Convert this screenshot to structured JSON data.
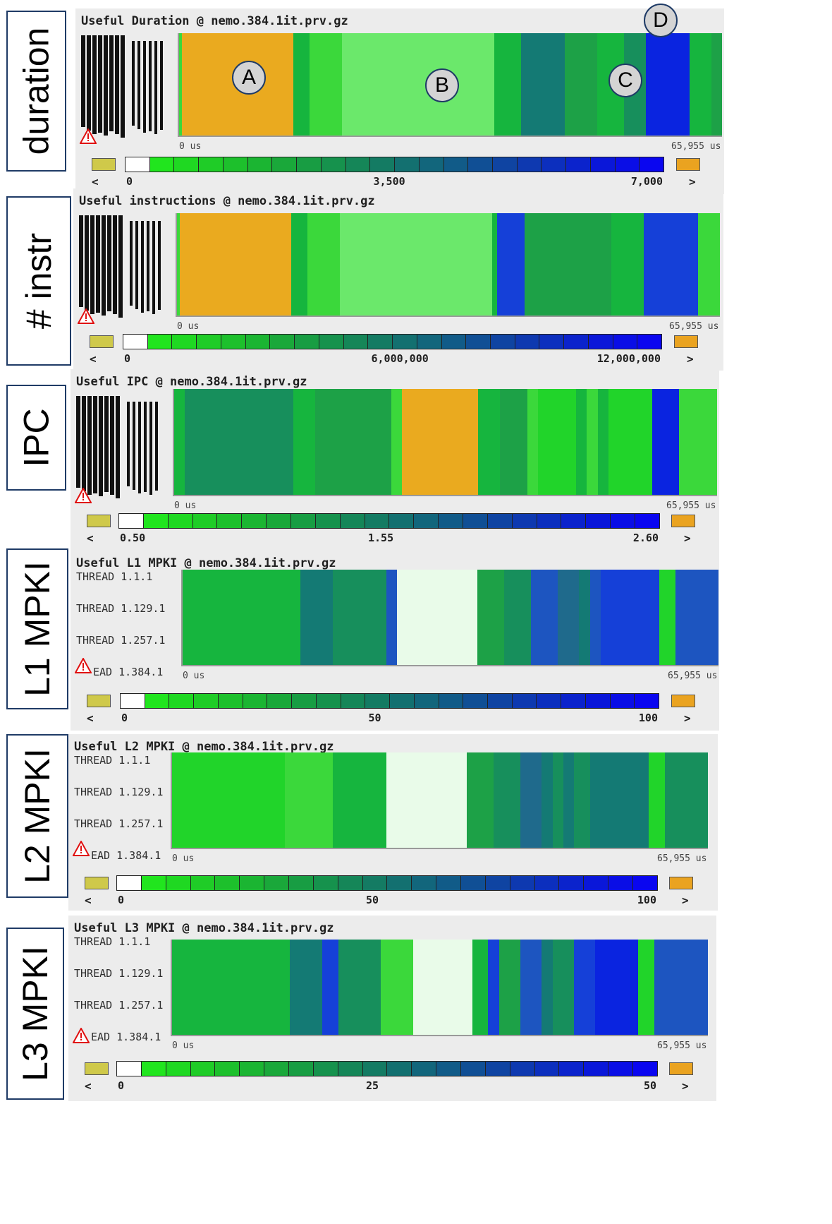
{
  "side_labels": [
    "duration",
    "# instr",
    "IPC",
    "L1 MPKI",
    "L2 MPKI",
    "L3 MPKI"
  ],
  "panels": [
    {
      "title": "Useful Duration @ nemo.384.1it.prv.gz",
      "axis_start": "0 us",
      "axis_end": "65,955 us",
      "ticks": [
        "0",
        "3,500",
        "7,000"
      ],
      "nav_prev": "<",
      "nav_next": ">",
      "threads": []
    },
    {
      "title": "Useful instructions @ nemo.384.1it.prv.gz",
      "axis_start": "0 us",
      "axis_end": "65,955 us",
      "ticks": [
        "0",
        "6,000,000",
        "12,000,000"
      ],
      "nav_prev": "<",
      "nav_next": ">",
      "threads": []
    },
    {
      "title": "Useful IPC @ nemo.384.1it.prv.gz",
      "axis_start": "0 us",
      "axis_end": "65,955 us",
      "ticks": [
        "0.50",
        "1.55",
        "2.60"
      ],
      "nav_prev": "<",
      "nav_next": ">",
      "threads": []
    },
    {
      "title": "Useful L1 MPKI @ nemo.384.1it.prv.gz",
      "axis_start": "0 us",
      "axis_end": "65,955 us",
      "ticks": [
        "0",
        "50",
        "100"
      ],
      "nav_prev": "<",
      "nav_next": ">",
      "threads": [
        "THREAD 1.1.1",
        "THREAD 1.129.1",
        "THREAD 1.257.1",
        "EAD 1.384.1"
      ]
    },
    {
      "title": "Useful L2 MPKI @ nemo.384.1it.prv.gz",
      "axis_start": "0 us",
      "axis_end": "65,955 us",
      "ticks": [
        "0",
        "50",
        "100"
      ],
      "nav_prev": "<",
      "nav_next": ">",
      "threads": [
        "THREAD 1.1.1",
        "THREAD 1.129.1",
        "THREAD 1.257.1",
        "EAD 1.384.1"
      ]
    },
    {
      "title": "Useful L3 MPKI @ nemo.384.1it.prv.gz",
      "axis_start": "0 us",
      "axis_end": "65,955 us",
      "ticks": [
        "0",
        "25",
        "50"
      ],
      "nav_prev": "<",
      "nav_next": ">",
      "threads": [
        "THREAD 1.1.1",
        "THREAD 1.129.1",
        "THREAD 1.257.1",
        "EAD 1.384.1"
      ]
    }
  ],
  "markers": [
    "A",
    "B",
    "C",
    "D"
  ],
  "icons": {
    "warning": "warning-icon"
  },
  "colors": {
    "low_swatch": "#cfc94a",
    "high_swatch": "#eaa320",
    "orange": "#eaaa1f",
    "blue": "#0a24e0"
  }
}
